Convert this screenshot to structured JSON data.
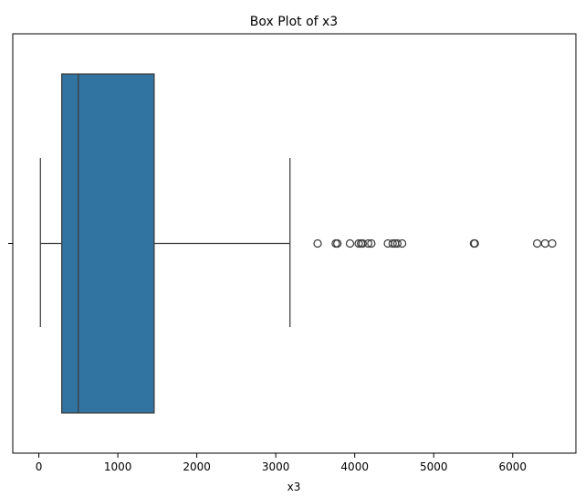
{
  "chart_data": {
    "type": "box",
    "title": "Box Plot of x3",
    "xlabel": "x3",
    "ylabel": "",
    "orientation": "horizontal",
    "xlim": [
      -330,
      6800
    ],
    "x_ticks": [
      0,
      1000,
      2000,
      3000,
      4000,
      5000,
      6000
    ],
    "x_tick_labels": [
      "0",
      "1000",
      "2000",
      "3000",
      "4000",
      "5000",
      "6000"
    ],
    "grid": false,
    "legend": "none",
    "box_color": "#3274a1",
    "line_color": "#3d3d3d",
    "series": [
      {
        "whisker_low": 20,
        "q1": 290,
        "median": 500,
        "q3": 1460,
        "whisker_high": 3180,
        "outliers": [
          3530,
          3760,
          3780,
          3940,
          4050,
          4080,
          4100,
          4170,
          4210,
          4420,
          4480,
          4510,
          4540,
          4600,
          5510,
          5520,
          6310,
          6410,
          6500
        ]
      }
    ]
  }
}
